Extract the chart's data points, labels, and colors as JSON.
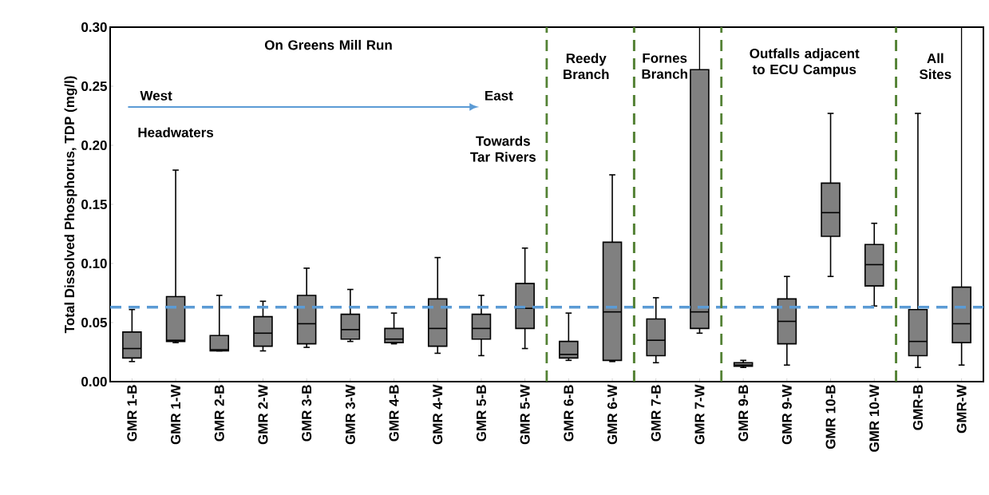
{
  "chart_data": {
    "type": "box",
    "ylabel": "Total Dissolved Phosphorus, TDP (mg/l)",
    "categories": [
      "GMR 1-B",
      "GMR 1-W",
      "GMR 2-B",
      "GMR 2-W",
      "GMR 3-B",
      "GMR 3-W",
      "GMR 4-B",
      "GMR 4-W",
      "GMR 5-B",
      "GMR 5-W",
      "GMR 6-B",
      "GMR 6-W",
      "GMR 7-B",
      "GMR 7-W",
      "GMR 9-B",
      "GMR 9-W",
      "GMR 10-B",
      "GMR 10-W",
      "GMR-B",
      "GMR-W"
    ],
    "color": "#808080",
    "boxes": [
      {
        "low": 0.017,
        "q1": 0.02,
        "median": 0.028,
        "q3": 0.042,
        "high": 0.061
      },
      {
        "low": 0.033,
        "q1": 0.034,
        "median": 0.035,
        "q3": 0.072,
        "high": 0.179
      },
      {
        "low": 0.026,
        "q1": 0.026,
        "median": 0.027,
        "q3": 0.039,
        "high": 0.073
      },
      {
        "low": 0.026,
        "q1": 0.03,
        "median": 0.041,
        "q3": 0.055,
        "high": 0.068
      },
      {
        "low": 0.029,
        "q1": 0.032,
        "median": 0.049,
        "q3": 0.073,
        "high": 0.096
      },
      {
        "low": 0.034,
        "q1": 0.036,
        "median": 0.044,
        "q3": 0.057,
        "high": 0.078
      },
      {
        "low": 0.032,
        "q1": 0.033,
        "median": 0.036,
        "q3": 0.045,
        "high": 0.058
      },
      {
        "low": 0.024,
        "q1": 0.03,
        "median": 0.045,
        "q3": 0.07,
        "high": 0.105
      },
      {
        "low": 0.022,
        "q1": 0.036,
        "median": 0.045,
        "q3": 0.057,
        "high": 0.073
      },
      {
        "low": 0.028,
        "q1": 0.045,
        "median": 0.062,
        "q3": 0.083,
        "high": 0.113
      },
      {
        "low": 0.018,
        "q1": 0.02,
        "median": 0.023,
        "q3": 0.034,
        "high": 0.058
      },
      {
        "low": 0.017,
        "q1": 0.018,
        "median": 0.059,
        "q3": 0.118,
        "high": 0.175
      },
      {
        "low": 0.016,
        "q1": 0.022,
        "median": 0.035,
        "q3": 0.053,
        "high": 0.071
      },
      {
        "low": 0.041,
        "q1": 0.045,
        "median": 0.059,
        "q3": 0.264,
        "high": 0.3
      },
      {
        "low": 0.012,
        "q1": 0.013,
        "median": 0.014,
        "q3": 0.016,
        "high": 0.018
      },
      {
        "low": 0.014,
        "q1": 0.032,
        "median": 0.051,
        "q3": 0.07,
        "high": 0.089
      },
      {
        "low": 0.089,
        "q1": 0.123,
        "median": 0.143,
        "q3": 0.168,
        "high": 0.227
      },
      {
        "low": 0.064,
        "q1": 0.081,
        "median": 0.099,
        "q3": 0.116,
        "high": 0.134
      },
      {
        "low": 0.012,
        "q1": 0.022,
        "median": 0.034,
        "q3": 0.061,
        "high": 0.227
      },
      {
        "low": 0.014,
        "q1": 0.033,
        "median": 0.049,
        "q3": 0.08,
        "high": 0.3
      }
    ],
    "ylim": [
      0,
      0.3
    ],
    "yticks": [
      {
        "value": 0,
        "label": "0.00"
      },
      {
        "value": 0.05,
        "label": "0.05"
      },
      {
        "value": 0.1,
        "label": "0.10"
      },
      {
        "value": 0.15,
        "label": "0.15"
      },
      {
        "value": 0.2,
        "label": "0.20"
      },
      {
        "value": 0.25,
        "label": "0.25"
      },
      {
        "value": 0.3,
        "label": "0.30"
      }
    ],
    "ref_lines": [
      {
        "axis": "y",
        "value": 0.063,
        "color": "#5b9bd5",
        "line_style": "dashed"
      }
    ],
    "annotations": [
      "On Greens Mill Run",
      "West",
      "East",
      "Headwaters",
      "Towards Tar Rivers",
      "Reedy Branch",
      "Fornes Branch",
      "Outfalls adjacent to ECU Campus",
      "All Sites"
    ]
  }
}
